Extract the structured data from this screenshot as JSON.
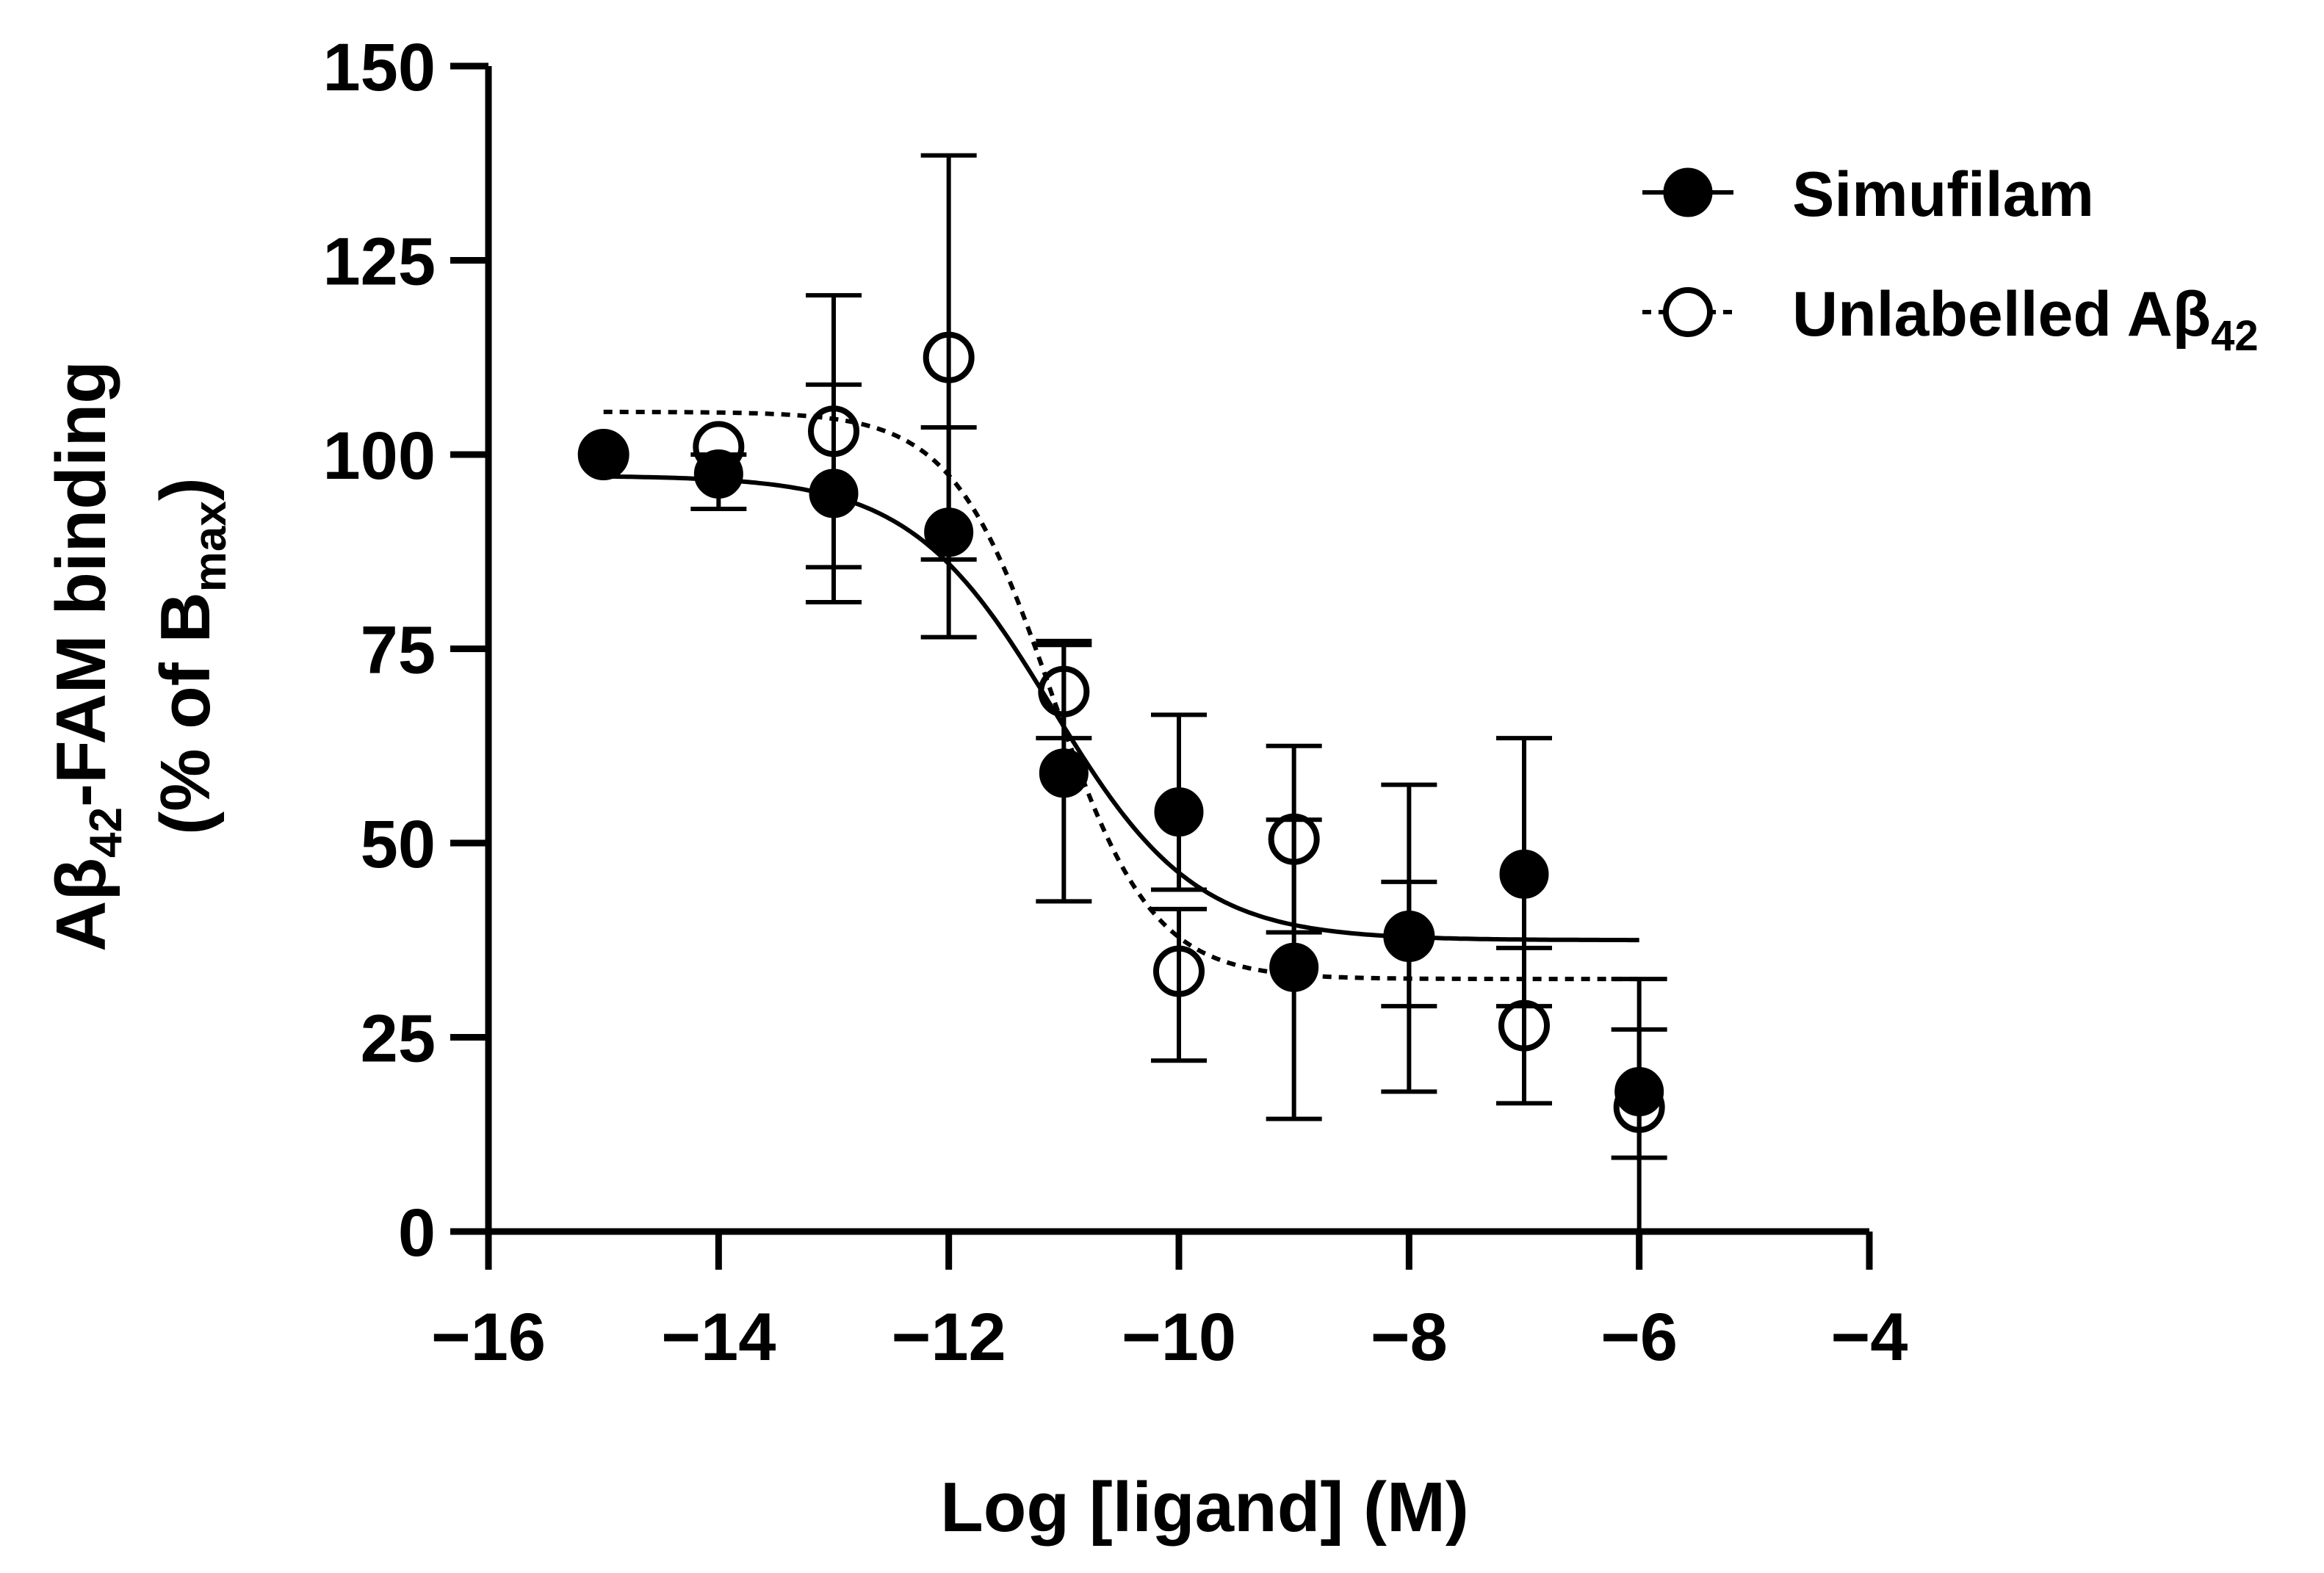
{
  "chart_data": {
    "type": "scatter",
    "xlabel": "Log [ligand] (M)",
    "ylabel_line1": "Aβ",
    "ylabel_line1_sub": "42",
    "ylabel_line1_rest": "-FAM binding",
    "ylabel_line2": "(% of B",
    "ylabel_line2_sub": "max",
    "ylabel_line2_rest": ")",
    "xlim": [
      -16,
      -4
    ],
    "ylim": [
      0,
      150
    ],
    "x_ticks": [
      -16,
      -14,
      -12,
      -10,
      -8,
      -6,
      -4
    ],
    "x_tick_labels": [
      "−16",
      "−14",
      "−12",
      "−10",
      "−8",
      "−6",
      "−4"
    ],
    "y_ticks": [
      0,
      25,
      50,
      75,
      100,
      125,
      150
    ],
    "y_tick_labels": [
      "0",
      "25",
      "50",
      "75",
      "100",
      "125",
      "150"
    ],
    "legend_position": "top-right",
    "series": [
      {
        "name": "Simufilam",
        "marker": "filled-circle",
        "fit": "solid",
        "fit_params": {
          "top": 97.3,
          "bottom": 37.5,
          "log_ic50": -11.1,
          "hill": -0.7
        },
        "x": [
          -15,
          -14,
          -13,
          -12,
          -11,
          -10,
          -9,
          -8,
          -7,
          -6
        ],
        "y": [
          100,
          97.5,
          95,
          90,
          59,
          54,
          34,
          38,
          46,
          18
        ],
        "err_low": [
          100,
          93,
          81,
          76.5,
          42.5,
          44,
          14.5,
          18,
          29,
          9.5
        ],
        "err_high": [
          100,
          100,
          109,
          103.5,
          75.5,
          66.5,
          53,
          57.5,
          63.5,
          32.5
        ]
      },
      {
        "name": "Unlabelled Aβ",
        "name_sub": "42",
        "marker": "open-circle",
        "fit": "dashed",
        "fit_params": {
          "top": 105.5,
          "bottom": 32.5,
          "log_ic50": -11.1,
          "hill": -1.0
        },
        "x": [
          -15,
          -14,
          -13,
          -12,
          -11,
          -10,
          -9,
          -8,
          -7,
          -6
        ],
        "y": [
          100,
          101,
          103,
          112.5,
          69.5,
          33.5,
          50.5,
          38,
          26.5,
          16
        ],
        "err_low": [
          100,
          101,
          85.5,
          86.5,
          63.5,
          22,
          38.5,
          29,
          16.5,
          0
        ],
        "err_high": [
          100,
          101,
          120.5,
          138.5,
          76,
          41.5,
          62.5,
          45,
          36.5,
          26
        ]
      }
    ]
  }
}
